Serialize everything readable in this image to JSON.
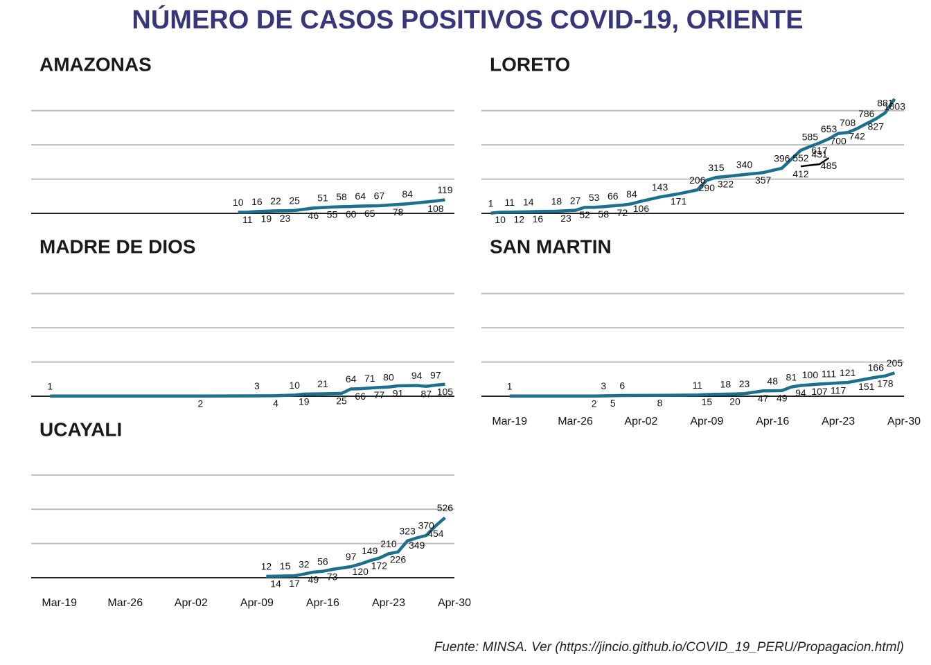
{
  "title": "NÚMERO DE CASOS POSITIVOS COVID-19, ORIENTE",
  "source": "Fuente: MINSA. Ver (https://jincio.github.io/COVID_19_PERU/Propagacion.html)",
  "chart_data": [
    {
      "type": "line",
      "title": "AMAZONAS",
      "xlim": [
        "Mar-16",
        "Apr-30"
      ],
      "ylim": [
        0,
        1050
      ],
      "yticks": [
        0,
        300,
        600,
        900
      ],
      "grid": true,
      "series": [
        {
          "color": "#1d6f8e",
          "x": [
            "Apr-07",
            "Apr-08",
            "Apr-09",
            "Apr-10",
            "Apr-11",
            "Apr-12",
            "Apr-13",
            "Apr-15",
            "Apr-16",
            "Apr-17",
            "Apr-18",
            "Apr-19",
            "Apr-20",
            "Apr-21",
            "Apr-22",
            "Apr-24",
            "Apr-25",
            "Apr-28",
            "Apr-29"
          ],
          "values": [
            10,
            11,
            16,
            19,
            22,
            23,
            25,
            46,
            51,
            55,
            58,
            60,
            64,
            65,
            67,
            78,
            84,
            108,
            119
          ]
        }
      ]
    },
    {
      "type": "line",
      "title": "LORETO",
      "xlim": [
        "Mar-16",
        "Apr-30"
      ],
      "ylim": [
        0,
        1050
      ],
      "yticks": [
        0,
        300,
        600,
        900
      ],
      "grid": true,
      "series": [
        {
          "color": "#1d6f8e",
          "x": [
            "Mar-17",
            "Mar-18",
            "Mar-19",
            "Mar-20",
            "Mar-21",
            "Mar-22",
            "Mar-24",
            "Mar-25",
            "Mar-26",
            "Mar-27",
            "Mar-28",
            "Mar-29",
            "Mar-30",
            "Mar-31",
            "Apr-01",
            "Apr-02",
            "Apr-04",
            "Apr-06",
            "Apr-08",
            "Apr-09",
            "Apr-10",
            "Apr-11",
            "Apr-13",
            "Apr-15",
            "Apr-17",
            "Apr-19",
            "Apr-20",
            "Apr-21",
            "Apr-22",
            "Apr-23",
            "Apr-24",
            "Apr-25",
            "Apr-26",
            "Apr-27",
            "Apr-28",
            "Apr-29"
          ],
          "values": [
            1,
            10,
            11,
            12,
            14,
            16,
            18,
            23,
            27,
            52,
            53,
            58,
            66,
            72,
            84,
            106,
            143,
            171,
            206,
            290,
            315,
            322,
            340,
            357,
            396,
            552,
            585,
            617,
            653,
            700,
            708,
            742,
            786,
            827,
            881,
            1003
          ]
        },
        {
          "color": "#000000",
          "x": [
            "Apr-19",
            "Apr-21",
            "Apr-22"
          ],
          "values": [
            412,
            431,
            485
          ]
        }
      ]
    },
    {
      "type": "line",
      "title": "MADRE DE DIOS",
      "xlim": [
        "Mar-16",
        "Apr-30"
      ],
      "ylim": [
        0,
        1050
      ],
      "yticks": [
        0,
        300,
        600,
        900
      ],
      "grid": true,
      "series": [
        {
          "color": "#1d6f8e",
          "x": [
            "Mar-18",
            "Apr-03",
            "Apr-09",
            "Apr-11",
            "Apr-13",
            "Apr-14",
            "Apr-16",
            "Apr-18",
            "Apr-19",
            "Apr-20",
            "Apr-21",
            "Apr-22",
            "Apr-23",
            "Apr-24",
            "Apr-26",
            "Apr-27",
            "Apr-28",
            "Apr-29"
          ],
          "values": [
            1,
            2,
            3,
            4,
            10,
            19,
            21,
            25,
            64,
            66,
            71,
            77,
            80,
            91,
            94,
            87,
            97,
            105
          ]
        }
      ]
    },
    {
      "type": "line",
      "title": "SAN MARTIN",
      "xlim": [
        "Mar-16",
        "Apr-30"
      ],
      "ylim": [
        0,
        1050
      ],
      "yticks": [
        0,
        300,
        600,
        900
      ],
      "grid": true,
      "xticks": [
        "Mar-19",
        "Mar-26",
        "Apr-02",
        "Apr-09",
        "Apr-16",
        "Apr-23",
        "Apr-30"
      ],
      "series": [
        {
          "color": "#1d6f8e",
          "x": [
            "Mar-19",
            "Mar-28",
            "Mar-29",
            "Mar-30",
            "Mar-31",
            "Apr-04",
            "Apr-08",
            "Apr-09",
            "Apr-11",
            "Apr-12",
            "Apr-13",
            "Apr-15",
            "Apr-16",
            "Apr-17",
            "Apr-18",
            "Apr-19",
            "Apr-20",
            "Apr-21",
            "Apr-22",
            "Apr-23",
            "Apr-24",
            "Apr-26",
            "Apr-27",
            "Apr-28",
            "Apr-29"
          ],
          "values": [
            1,
            2,
            3,
            5,
            6,
            8,
            11,
            15,
            18,
            20,
            23,
            47,
            48,
            49,
            81,
            94,
            100,
            107,
            111,
            117,
            121,
            151,
            166,
            178,
            205
          ]
        }
      ]
    },
    {
      "type": "line",
      "title": "UCAYALI",
      "xlim": [
        "Mar-16",
        "Apr-30"
      ],
      "ylim": [
        0,
        1050
      ],
      "yticks": [
        0,
        300,
        600,
        900
      ],
      "grid": true,
      "xticks": [
        "Mar-19",
        "Mar-26",
        "Apr-02",
        "Apr-09",
        "Apr-16",
        "Apr-23",
        "Apr-30"
      ],
      "series": [
        {
          "color": "#1d6f8e",
          "x": [
            "Apr-10",
            "Apr-11",
            "Apr-12",
            "Apr-13",
            "Apr-14",
            "Apr-15",
            "Apr-16",
            "Apr-17",
            "Apr-19",
            "Apr-20",
            "Apr-21",
            "Apr-22",
            "Apr-23",
            "Apr-24",
            "Apr-25",
            "Apr-26",
            "Apr-27",
            "Apr-28",
            "Apr-29"
          ],
          "values": [
            12,
            14,
            15,
            17,
            32,
            49,
            56,
            73,
            97,
            120,
            149,
            172,
            210,
            226,
            323,
            349,
            370,
            454,
            526
          ]
        }
      ]
    }
  ]
}
